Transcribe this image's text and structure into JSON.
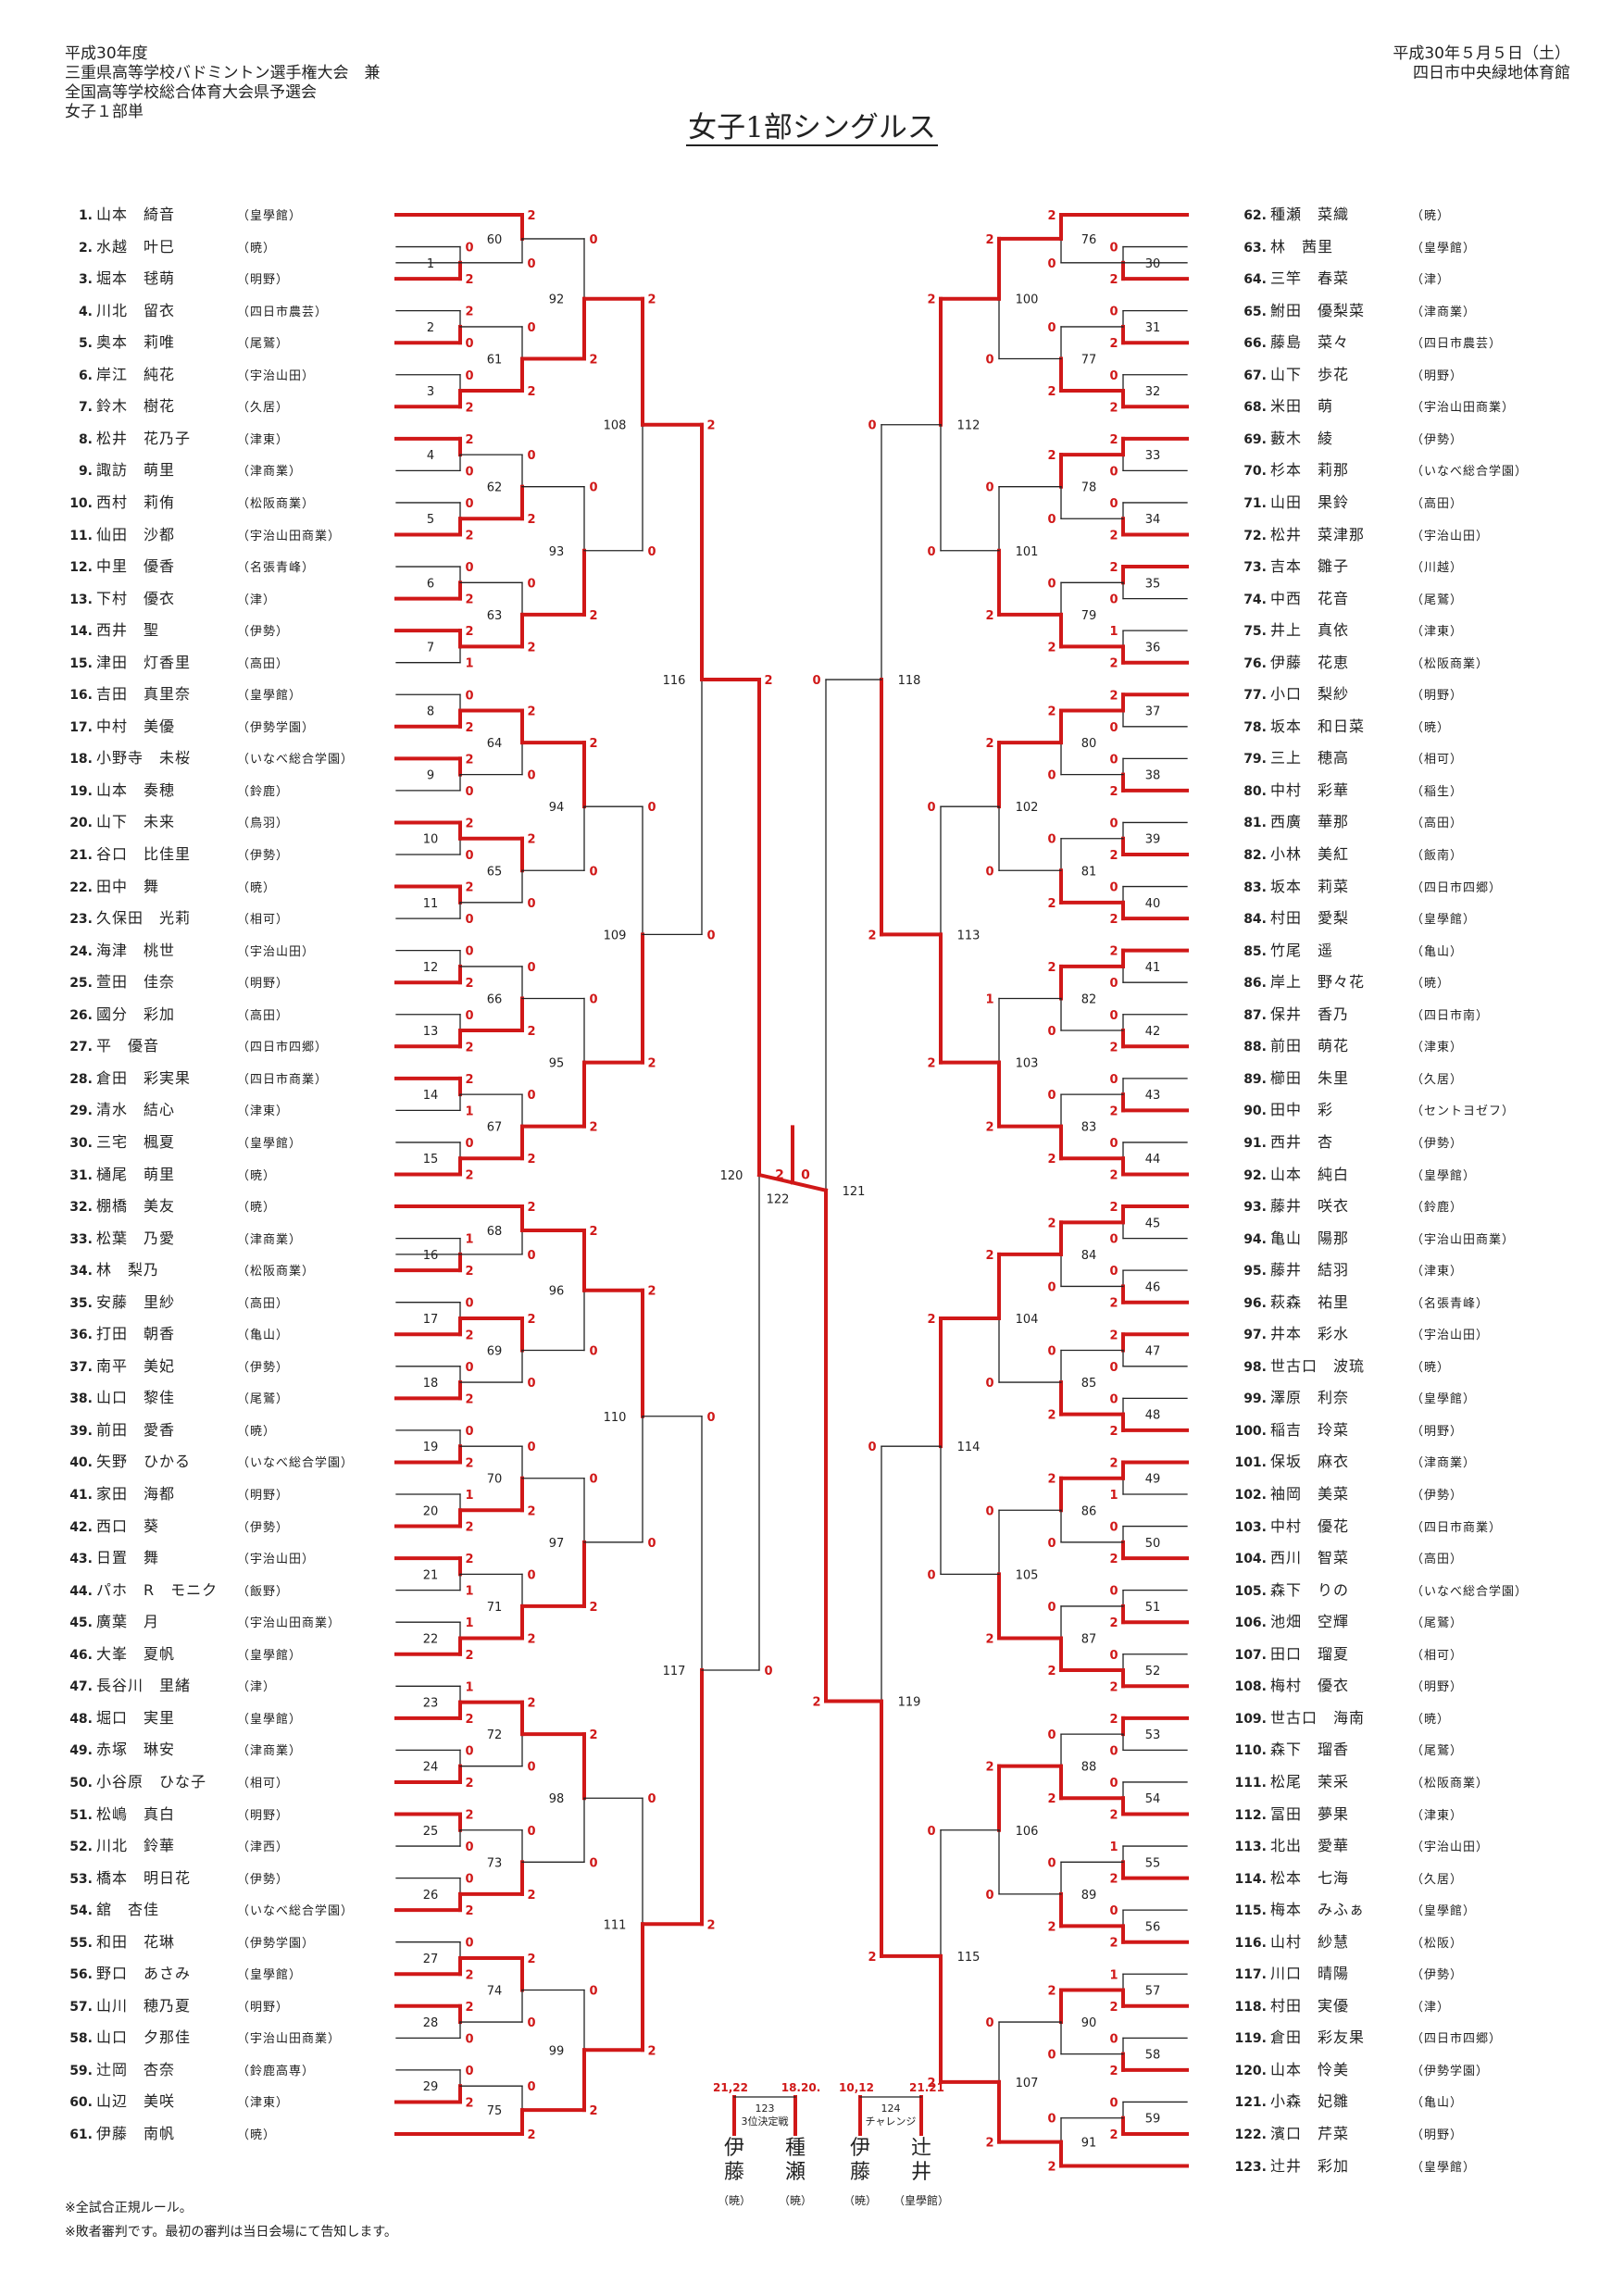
{
  "header": {
    "left_lines": [
      "平成30年度",
      "三重県高等学校バドミントン選手権大会　兼",
      "全国高等学校総合体育大会県予選会",
      "女子１部単"
    ],
    "date": "平成30年５月５日（土）",
    "venue": "四日市中央緑地体育館"
  },
  "title": "女子1部シングルス",
  "colors": {
    "win": "#d01818",
    "line": "#222222"
  },
  "players": [
    {
      "no": 1,
      "name": "山本　綺音",
      "school": "皇學館"
    },
    {
      "no": 2,
      "name": "水越　叶巳",
      "school": "暁"
    },
    {
      "no": 3,
      "name": "堀本　毬萌",
      "school": "明野"
    },
    {
      "no": 4,
      "name": "川北　留衣",
      "school": "四日市農芸"
    },
    {
      "no": 5,
      "name": "奥本　莉唯",
      "school": "尾鷲"
    },
    {
      "no": 6,
      "name": "岸江　純花",
      "school": "宇治山田"
    },
    {
      "no": 7,
      "name": "鈴木　樹花",
      "school": "久居"
    },
    {
      "no": 8,
      "name": "松井　花乃子",
      "school": "津東"
    },
    {
      "no": 9,
      "name": "諏訪　萌里",
      "school": "津商業"
    },
    {
      "no": 10,
      "name": "西村　莉侑",
      "school": "松阪商業"
    },
    {
      "no": 11,
      "name": "仙田　沙都",
      "school": "宇治山田商業"
    },
    {
      "no": 12,
      "name": "中里　優香",
      "school": "名張青峰"
    },
    {
      "no": 13,
      "name": "下村　優衣",
      "school": "津"
    },
    {
      "no": 14,
      "name": "西井　聖",
      "school": "伊勢"
    },
    {
      "no": 15,
      "name": "津田　灯香里",
      "school": "高田"
    },
    {
      "no": 16,
      "name": "吉田　真里奈",
      "school": "皇學館"
    },
    {
      "no": 17,
      "name": "中村　美優",
      "school": "伊勢学園"
    },
    {
      "no": 18,
      "name": "小野寺　未桜",
      "school": "いなべ総合学園"
    },
    {
      "no": 19,
      "name": "山本　奏穂",
      "school": "鈴鹿"
    },
    {
      "no": 20,
      "name": "山下　未来",
      "school": "鳥羽"
    },
    {
      "no": 21,
      "name": "谷口　比佳里",
      "school": "伊勢"
    },
    {
      "no": 22,
      "name": "田中　舞",
      "school": "暁"
    },
    {
      "no": 23,
      "name": "久保田　光莉",
      "school": "相可"
    },
    {
      "no": 24,
      "name": "海津　桃世",
      "school": "宇治山田"
    },
    {
      "no": 25,
      "name": "萱田　佳奈",
      "school": "明野"
    },
    {
      "no": 26,
      "name": "國分　彩加",
      "school": "高田"
    },
    {
      "no": 27,
      "name": "平　優音",
      "school": "四日市四郷"
    },
    {
      "no": 28,
      "name": "倉田　彩実果",
      "school": "四日市商業"
    },
    {
      "no": 29,
      "name": "清水　結心",
      "school": "津東"
    },
    {
      "no": 30,
      "name": "三宅　楓夏",
      "school": "皇學館"
    },
    {
      "no": 31,
      "name": "樋尾　萌里",
      "school": "暁"
    },
    {
      "no": 32,
      "name": "棚橋　美友",
      "school": "暁"
    },
    {
      "no": 33,
      "name": "松葉　乃愛",
      "school": "津商業"
    },
    {
      "no": 34,
      "name": "林　梨乃",
      "school": "松阪商業"
    },
    {
      "no": 35,
      "name": "安藤　里紗",
      "school": "高田"
    },
    {
      "no": 36,
      "name": "打田　朝香",
      "school": "亀山"
    },
    {
      "no": 37,
      "name": "南平　美妃",
      "school": "伊勢"
    },
    {
      "no": 38,
      "name": "山口　黎佳",
      "school": "尾鷲"
    },
    {
      "no": 39,
      "name": "前田　愛香",
      "school": "暁"
    },
    {
      "no": 40,
      "name": "矢野　ひかる",
      "school": "いなべ総合学園"
    },
    {
      "no": 41,
      "name": "家田　海都",
      "school": "明野"
    },
    {
      "no": 42,
      "name": "西口　葵",
      "school": "伊勢"
    },
    {
      "no": 43,
      "name": "日置　舞",
      "school": "宇治山田"
    },
    {
      "no": 44,
      "name": "パホ　R　モニク",
      "school": "飯野"
    },
    {
      "no": 45,
      "name": "廣葉　月",
      "school": "宇治山田商業"
    },
    {
      "no": 46,
      "name": "大峯　夏帆",
      "school": "皇學館"
    },
    {
      "no": 47,
      "name": "長谷川　里緒",
      "school": "津"
    },
    {
      "no": 48,
      "name": "堀口　実里",
      "school": "皇學館"
    },
    {
      "no": 49,
      "name": "赤塚　琳安",
      "school": "津商業"
    },
    {
      "no": 50,
      "name": "小谷原　ひな子",
      "school": "相可"
    },
    {
      "no": 51,
      "name": "松嶋　真白",
      "school": "明野"
    },
    {
      "no": 52,
      "name": "川北　鈴華",
      "school": "津西"
    },
    {
      "no": 53,
      "name": "橋本　明日花",
      "school": "伊勢"
    },
    {
      "no": 54,
      "name": "舘　杏佳",
      "school": "いなべ総合学園"
    },
    {
      "no": 55,
      "name": "和田　花琳",
      "school": "伊勢学園"
    },
    {
      "no": 56,
      "name": "野口　あさみ",
      "school": "皇學館"
    },
    {
      "no": 57,
      "name": "山川　穂乃夏",
      "school": "明野"
    },
    {
      "no": 58,
      "name": "山口　夕那佳",
      "school": "宇治山田商業"
    },
    {
      "no": 59,
      "name": "辻岡　杏奈",
      "school": "鈴鹿高専"
    },
    {
      "no": 60,
      "name": "山辺　美咲",
      "school": "津東"
    },
    {
      "no": 61,
      "name": "伊藤　南帆",
      "school": "暁"
    },
    {
      "no": 62,
      "name": "種瀬　菜織",
      "school": "暁"
    },
    {
      "no": 63,
      "name": "林　茜里",
      "school": "皇學館"
    },
    {
      "no": 64,
      "name": "三竿　春菜",
      "school": "津"
    },
    {
      "no": 65,
      "name": "鮒田　優梨菜",
      "school": "津商業"
    },
    {
      "no": 66,
      "name": "藤島　菜々",
      "school": "四日市農芸"
    },
    {
      "no": 67,
      "name": "山下　歩花",
      "school": "明野"
    },
    {
      "no": 68,
      "name": "米田　萌",
      "school": "宇治山田商業"
    },
    {
      "no": 69,
      "name": "藪木　綾",
      "school": "伊勢"
    },
    {
      "no": 70,
      "name": "杉本　莉那",
      "school": "いなべ総合学園"
    },
    {
      "no": 71,
      "name": "山田　果鈴",
      "school": "高田"
    },
    {
      "no": 72,
      "name": "松井　菜津那",
      "school": "宇治山田"
    },
    {
      "no": 73,
      "name": "吉本　雛子",
      "school": "川越"
    },
    {
      "no": 74,
      "name": "中西　花音",
      "school": "尾鷲"
    },
    {
      "no": 75,
      "name": "井上　真依",
      "school": "津東"
    },
    {
      "no": 76,
      "name": "伊藤　花恵",
      "school": "松阪商業"
    },
    {
      "no": 77,
      "name": "小口　梨紗",
      "school": "明野"
    },
    {
      "no": 78,
      "name": "坂本　和日菜",
      "school": "暁"
    },
    {
      "no": 79,
      "name": "三上　穂高",
      "school": "相可"
    },
    {
      "no": 80,
      "name": "中村　彩華",
      "school": "稲生"
    },
    {
      "no": 81,
      "name": "西廣　華那",
      "school": "高田"
    },
    {
      "no": 82,
      "name": "小林　美紅",
      "school": "飯南"
    },
    {
      "no": 83,
      "name": "坂本　莉菜",
      "school": "四日市四郷"
    },
    {
      "no": 84,
      "name": "村田　愛梨",
      "school": "皇學館"
    },
    {
      "no": 85,
      "name": "竹尾　遥",
      "school": "亀山"
    },
    {
      "no": 86,
      "name": "岸上　野々花",
      "school": "暁"
    },
    {
      "no": 87,
      "name": "保井　香乃",
      "school": "四日市南"
    },
    {
      "no": 88,
      "name": "前田　萌花",
      "school": "津東"
    },
    {
      "no": 89,
      "name": "櫛田　朱里",
      "school": "久居"
    },
    {
      "no": 90,
      "name": "田中　彩",
      "school": "セントヨゼフ"
    },
    {
      "no": 91,
      "name": "西井　杏",
      "school": "伊勢"
    },
    {
      "no": 92,
      "name": "山本　純白",
      "school": "皇學館"
    },
    {
      "no": 93,
      "name": "藤井　咲衣",
      "school": "鈴鹿"
    },
    {
      "no": 94,
      "name": "亀山　陽那",
      "school": "宇治山田商業"
    },
    {
      "no": 95,
      "name": "藤井　結羽",
      "school": "津東"
    },
    {
      "no": 96,
      "name": "萩森　祐里",
      "school": "名張青峰"
    },
    {
      "no": 97,
      "name": "井本　彩水",
      "school": "宇治山田"
    },
    {
      "no": 98,
      "name": "世古口　波琉",
      "school": "暁"
    },
    {
      "no": 99,
      "name": "澤原　利奈",
      "school": "皇學館"
    },
    {
      "no": 100,
      "name": "稲吉　玲菜",
      "school": "明野"
    },
    {
      "no": 101,
      "name": "保坂　麻衣",
      "school": "津商業"
    },
    {
      "no": 102,
      "name": "袖岡　美菜",
      "school": "伊勢"
    },
    {
      "no": 103,
      "name": "中村　優花",
      "school": "四日市商業"
    },
    {
      "no": 104,
      "name": "西川　智菜",
      "school": "高田"
    },
    {
      "no": 105,
      "name": "森下　りの",
      "school": "いなべ総合学園"
    },
    {
      "no": 106,
      "name": "池畑　空輝",
      "school": "尾鷲"
    },
    {
      "no": 107,
      "name": "田口　瑠夏",
      "school": "相可"
    },
    {
      "no": 108,
      "name": "梅村　優衣",
      "school": "明野"
    },
    {
      "no": 109,
      "name": "世古口　海南",
      "school": "暁"
    },
    {
      "no": 110,
      "name": "森下　瑠香",
      "school": "尾鷲"
    },
    {
      "no": 111,
      "name": "松尾　茉采",
      "school": "松阪商業"
    },
    {
      "no": 112,
      "name": "冨田　夢果",
      "school": "津東"
    },
    {
      "no": 113,
      "name": "北出　愛華",
      "school": "宇治山田"
    },
    {
      "no": 114,
      "name": "松本　七海",
      "school": "久居"
    },
    {
      "no": 115,
      "name": "梅本　みふぁ",
      "school": "皇學館"
    },
    {
      "no": 116,
      "name": "山村　紗慧",
      "school": "松阪"
    },
    {
      "no": 117,
      "name": "川口　晴陽",
      "school": "伊勢"
    },
    {
      "no": 118,
      "name": "村田　実優",
      "school": "津"
    },
    {
      "no": 119,
      "name": "倉田　彩友果",
      "school": "四日市四郷"
    },
    {
      "no": 120,
      "name": "山本　怜美",
      "school": "伊勢学園"
    },
    {
      "no": 121,
      "name": "小森　妃雛",
      "school": "亀山"
    },
    {
      "no": 122,
      "name": "濱口　芹菜",
      "school": "明野"
    },
    {
      "no": 123,
      "name": "辻井　彩加",
      "school": "皇學館"
    }
  ],
  "final": {
    "match_no": "122",
    "scores": [
      "2",
      "0"
    ]
  },
  "playoffs": [
    {
      "scores_left": "21,22",
      "scores_right": "18.20.",
      "match_no": "123",
      "label": "3位決定戦",
      "left_name": "伊藤",
      "left_school": "（暁）",
      "right_name": "種瀬",
      "right_school": "（暁）"
    },
    {
      "scores_left": "10,12",
      "scores_right": "21.21",
      "match_no": "124",
      "label": "チャレンジ",
      "left_name": "伊藤",
      "left_school": "（暁）",
      "right_name": "辻井",
      "right_school": "（皇學館）"
    }
  ],
  "notes": [
    "※全試合正規ルール。",
    "※敗者審判です。最初の審判は当日会場にて告知します。"
  ]
}
